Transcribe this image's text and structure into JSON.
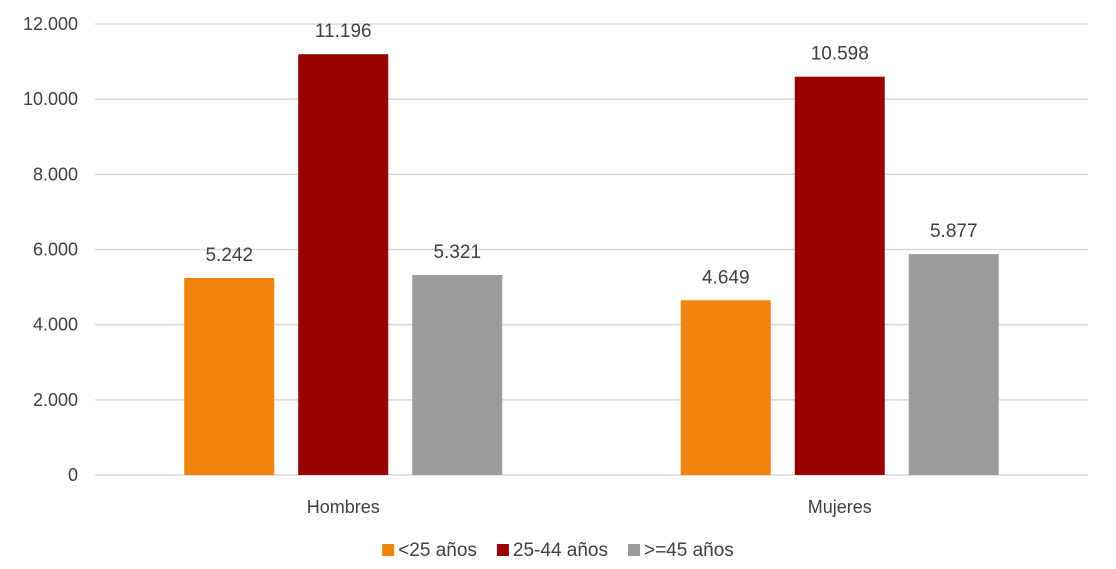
{
  "chart_data": {
    "type": "bar",
    "title": "",
    "xlabel": "",
    "ylabel": "",
    "categories": [
      "Hombres",
      "Mujeres"
    ],
    "series": [
      {
        "name": "<25 años",
        "color": "#F0830C",
        "values": [
          5242,
          4649
        ],
        "labels": [
          "5.242",
          "4.649"
        ]
      },
      {
        "name": "25-44 años",
        "color": "#960000",
        "values": [
          11196,
          10598
        ],
        "labels": [
          "11.196",
          "10.598"
        ]
      },
      {
        "name": ">=45 años",
        "color": "#9B9B9B",
        "values": [
          5321,
          5877
        ],
        "labels": [
          "5.321",
          "5.877"
        ]
      }
    ],
    "ylim": [
      0,
      12000
    ],
    "yticks": [
      0,
      2000,
      4000,
      6000,
      8000,
      10000,
      12000
    ],
    "ytick_labels": [
      "0",
      "2.000",
      "4.000",
      "6.000",
      "8.000",
      "10.000",
      "12.000"
    ],
    "grid": true,
    "legend_position": "bottom-center",
    "gridline_color": "#D9D9D9"
  }
}
